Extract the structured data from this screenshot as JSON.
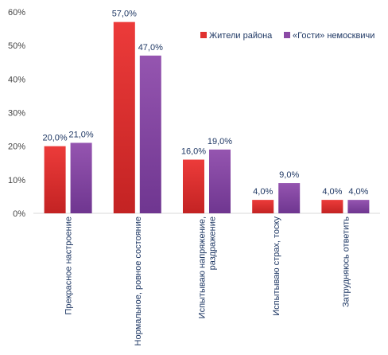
{
  "chart_data": {
    "type": "bar",
    "categories": [
      [
        "Прекрасное настроение"
      ],
      [
        "Нормальное, ровное состояние"
      ],
      [
        "Испытываю напряжение,",
        "раздражение"
      ],
      [
        "Испытываю страх, тоску"
      ],
      [
        "Затрудняюсь ответить"
      ]
    ],
    "series": [
      {
        "name": "Жители района",
        "values": [
          20,
          57,
          16,
          4,
          4
        ],
        "labels": [
          "20,0%",
          "57,0%",
          "16,0%",
          "4,0%",
          "4,0%"
        ],
        "color": "#e0312f"
      },
      {
        "name": "«Гости» немосквичи",
        "values": [
          21,
          47,
          19,
          9,
          4
        ],
        "labels": [
          "21,0%",
          "47,0%",
          "19,0%",
          "9,0%",
          "4,0%"
        ],
        "color": "#8b4aa5"
      }
    ],
    "yticks": [
      "0%",
      "10%",
      "20%",
      "30%",
      "40%",
      "50%",
      "60%"
    ],
    "ylim": [
      0,
      60
    ],
    "grid": false,
    "legend": "top-right",
    "title": "",
    "xlabel": "",
    "ylabel": ""
  }
}
